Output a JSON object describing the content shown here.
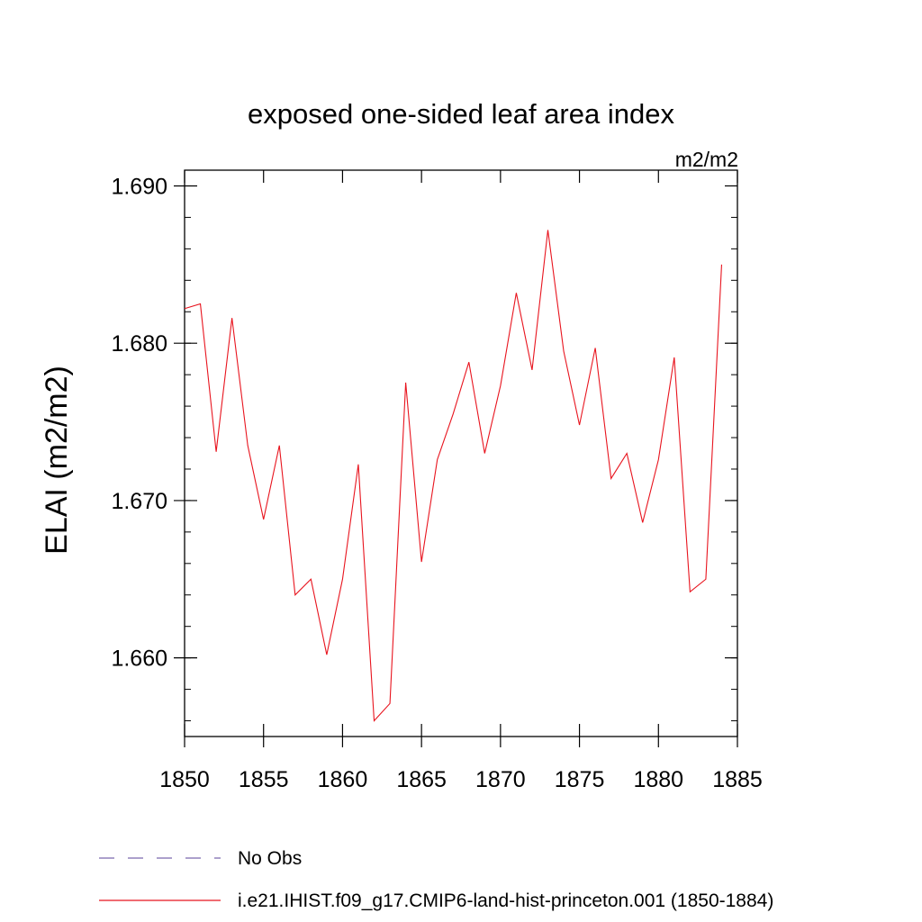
{
  "chart_data": {
    "type": "line",
    "title": "exposed one-sided leaf area index",
    "units_label": "m2/m2",
    "xlabel": "",
    "ylabel": "ELAI  (m2/m2)",
    "xlim": [
      1850,
      1885
    ],
    "ylim": [
      1.655,
      1.691
    ],
    "x_ticks": [
      1850,
      1855,
      1860,
      1865,
      1870,
      1875,
      1880,
      1885
    ],
    "y_ticks": [
      1.66,
      1.67,
      1.68,
      1.69
    ],
    "y_tick_labels": [
      "1.660",
      "1.670",
      "1.680",
      "1.690"
    ],
    "grid": false,
    "legend_position": "bottom",
    "series": [
      {
        "name": "No Obs",
        "color": "#7b68ae",
        "dash": "dashed",
        "x": [],
        "y": []
      },
      {
        "name": "i.e21.IHIST.f09_g17.CMIP6-land-hist-princeton.001 (1850-1884)",
        "color": "#e8141e",
        "dash": "solid",
        "x": [
          1850,
          1851,
          1852,
          1853,
          1854,
          1855,
          1856,
          1857,
          1858,
          1859,
          1860,
          1861,
          1862,
          1863,
          1864,
          1865,
          1866,
          1867,
          1868,
          1869,
          1870,
          1871,
          1872,
          1873,
          1874,
          1875,
          1876,
          1877,
          1878,
          1879,
          1880,
          1881,
          1882,
          1883,
          1884
        ],
        "y": [
          1.6822,
          1.6825,
          1.6731,
          1.6816,
          1.6735,
          1.6688,
          1.6735,
          1.664,
          1.665,
          1.6602,
          1.665,
          1.6723,
          1.656,
          1.6571,
          1.6775,
          1.6661,
          1.6726,
          1.6755,
          1.6788,
          1.673,
          1.6773,
          1.6832,
          1.6783,
          1.6872,
          1.6795,
          1.6748,
          1.6797,
          1.6714,
          1.673,
          1.6686,
          1.6726,
          1.6791,
          1.6642,
          1.665,
          1.685
        ]
      }
    ]
  }
}
